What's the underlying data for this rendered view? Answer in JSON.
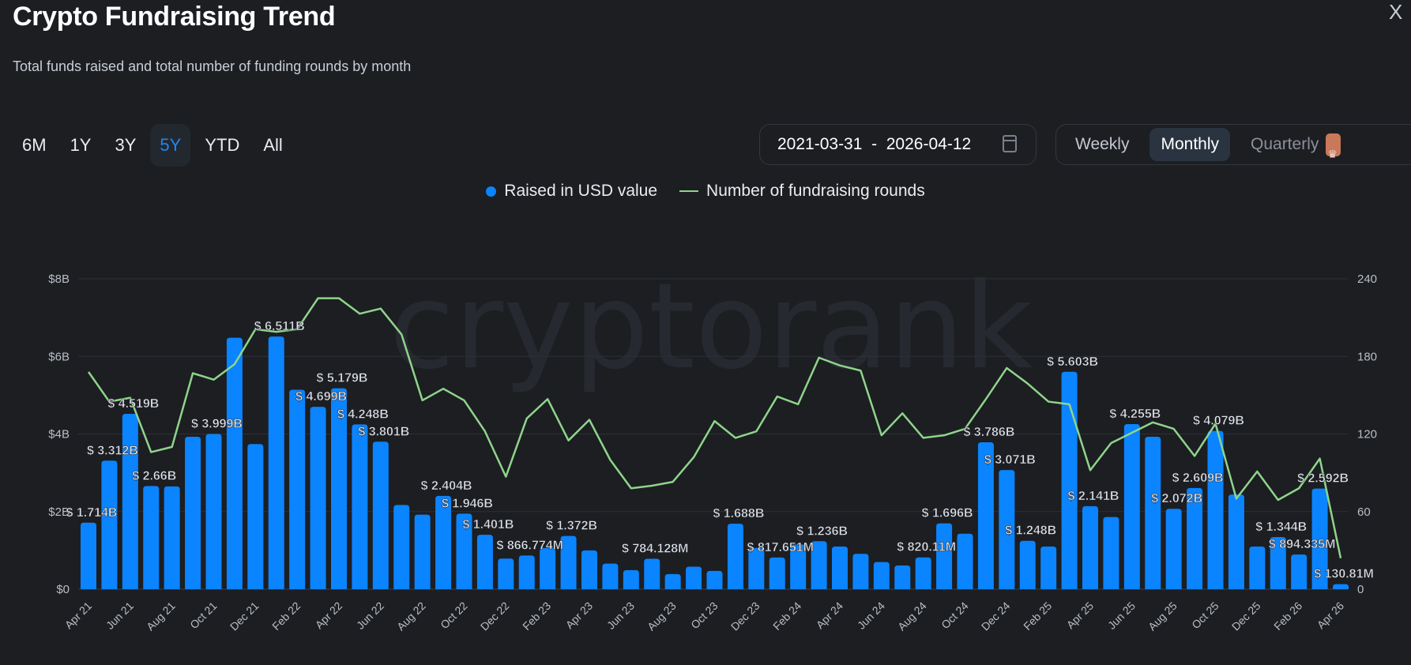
{
  "header": {
    "title": "Crypto Fundraising Trend",
    "subtitle": "Total funds raised and total number of funding rounds by month",
    "close_label": "X"
  },
  "ranges": [
    {
      "label": "6M",
      "active": false
    },
    {
      "label": "1Y",
      "active": false
    },
    {
      "label": "3Y",
      "active": false
    },
    {
      "label": "5Y",
      "active": true
    },
    {
      "label": "YTD",
      "active": false
    },
    {
      "label": "All",
      "active": false
    }
  ],
  "date_range": {
    "value": "2021-03-31  -  2026-04-12",
    "icon": "calendar-icon"
  },
  "period": [
    {
      "label": "Weekly",
      "active": false
    },
    {
      "label": "Monthly",
      "active": true
    },
    {
      "label": "Quarterly",
      "active": false,
      "icon": "crown-icon"
    }
  ],
  "watermark": "cryptorank",
  "colors": {
    "bars": "#0a84ff",
    "line": "#8fd48a",
    "accent": "#1e88f0",
    "background": "#1c1e22"
  },
  "chart_data": {
    "type": "bar+line",
    "legend": [
      "Raised in USD value",
      "Number of fundraising rounds"
    ],
    "legend_position": "top",
    "grid": true,
    "categories": [
      "Apr 21",
      "May 21",
      "Jun 21",
      "Jul 21",
      "Aug 21",
      "Sep 21",
      "Oct 21",
      "Nov 21",
      "Dec 21",
      "Jan 22",
      "Feb 22",
      "Mar 22",
      "Apr 22",
      "May 22",
      "Jun 22",
      "Jul 22",
      "Aug 22",
      "Sep 22",
      "Oct 22",
      "Nov 22",
      "Dec 22",
      "Jan 23",
      "Feb 23",
      "Mar 23",
      "Apr 23",
      "May 23",
      "Jun 23",
      "Jul 23",
      "Aug 23",
      "Sep 23",
      "Oct 23",
      "Nov 23",
      "Dec 23",
      "Jan 24",
      "Feb 24",
      "Mar 24",
      "Apr 24",
      "May 24",
      "Jun 24",
      "Jul 24",
      "Aug 24",
      "Sep 24",
      "Oct 24",
      "Nov 24",
      "Dec 24",
      "Jan 25",
      "Feb 25",
      "Mar 25",
      "Apr 25",
      "May 25",
      "Jun 25",
      "Jul 25",
      "Aug 25",
      "Sep 25",
      "Oct 25",
      "Nov 25",
      "Dec 25",
      "Jan 26",
      "Feb 26",
      "Mar 26",
      "Apr 26"
    ],
    "x_tick_labels": [
      "Apr 21",
      "Jun 21",
      "Aug 21",
      "Oct 21",
      "Dec 21",
      "Feb 22",
      "Apr 22",
      "Jun 22",
      "Aug 22",
      "Oct 22",
      "Dec 22",
      "Feb 23",
      "Apr 23",
      "Jun 23",
      "Aug 23",
      "Oct 23",
      "Dec 23",
      "Feb 24",
      "Apr 24",
      "Jun 24",
      "Aug 24",
      "Oct 24",
      "Dec 24",
      "Feb 25",
      "Apr 25",
      "Jun 25",
      "Aug 25",
      "Oct 25",
      "Dec 25",
      "Feb 26",
      "Apr 26"
    ],
    "y_left": {
      "unit": "USD billions",
      "range": [
        0,
        8
      ],
      "ticks": [
        "$0",
        "$2B",
        "$4B",
        "$6B",
        "$8B"
      ]
    },
    "y_right": {
      "range": [
        0,
        240
      ],
      "ticks": [
        "0",
        "60",
        "120",
        "180",
        "240"
      ]
    },
    "series": [
      {
        "name": "Raised in USD value",
        "type": "bar",
        "axis": "left",
        "values": [
          1.714,
          3.312,
          4.519,
          2.66,
          2.65,
          3.93,
          3.999,
          6.48,
          3.74,
          6.511,
          5.14,
          4.699,
          5.179,
          4.248,
          3.801,
          2.17,
          1.92,
          2.404,
          1.946,
          1.401,
          0.79,
          0.867,
          1.06,
          1.372,
          1.0,
          0.66,
          0.49,
          0.784,
          0.39,
          0.58,
          0.47,
          1.688,
          1.06,
          0.818,
          1.15,
          1.236,
          1.1,
          0.91,
          0.7,
          0.61,
          0.82,
          1.696,
          1.43,
          3.786,
          3.071,
          1.248,
          1.1,
          5.603,
          2.141,
          1.86,
          4.255,
          3.93,
          2.072,
          2.609,
          4.079,
          2.44,
          1.1,
          1.344,
          0.894,
          2.592,
          0.131
        ],
        "labels": [
          "$ 1.714B",
          "$ 3.312B",
          "$ 4.519B",
          "$ 2.66B",
          null,
          null,
          "$ 3.999B",
          null,
          null,
          "$ 6.511B",
          null,
          "$ 4.699B",
          "$ 5.179B",
          "$ 4.248B",
          "$ 3.801B",
          null,
          null,
          "$ 2.404B",
          "$ 1.946B",
          "$ 1.401B",
          null,
          "$ 866.774M",
          null,
          "$ 1.372B",
          null,
          null,
          null,
          "$ 784.128M",
          null,
          null,
          null,
          "$ 1.688B",
          null,
          "$ 817.651M",
          null,
          "$ 1.236B",
          null,
          null,
          null,
          null,
          "$ 820.11M",
          "$ 1.696B",
          null,
          "$ 3.786B",
          "$ 3.071B",
          "$ 1.248B",
          null,
          "$ 5.603B",
          "$ 2.141B",
          null,
          "$ 4.255B",
          null,
          "$ 2.072B",
          "$ 2.609B",
          "$ 4.079B",
          null,
          null,
          "$ 1.344B",
          "$ 894.335M",
          "$ 2.592B",
          "$ 130.81M"
        ]
      },
      {
        "name": "Number of fundraising rounds",
        "type": "line",
        "axis": "right",
        "values": [
          168,
          145,
          148,
          106,
          110,
          167,
          162,
          174,
          201,
          199,
          201,
          225,
          225,
          213,
          217,
          197,
          146,
          155,
          146,
          122,
          87,
          132,
          147,
          115,
          131,
          100,
          78,
          80,
          83,
          102,
          130,
          117,
          122,
          149,
          143,
          179,
          173,
          169,
          119,
          136,
          117,
          119,
          124,
          147,
          171,
          159,
          145,
          143,
          92,
          113,
          121,
          129,
          124,
          103,
          128,
          70,
          91,
          69,
          78,
          101,
          24
        ]
      }
    ]
  }
}
